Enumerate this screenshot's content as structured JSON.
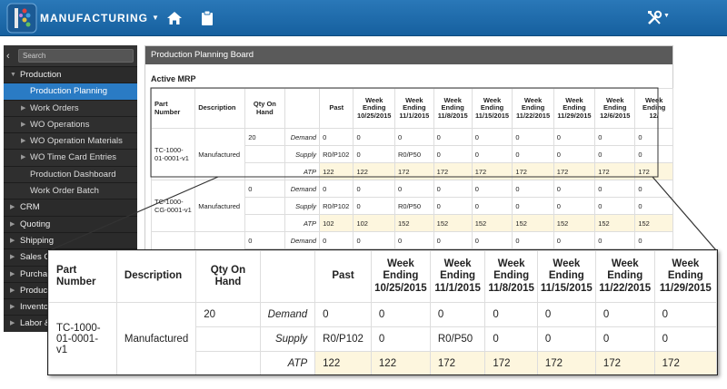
{
  "header": {
    "app_title": "MANUFACTURING"
  },
  "sidebar": {
    "search_placeholder": "Search",
    "items": [
      {
        "label": "Production",
        "kind": "section"
      },
      {
        "label": "Production Planning",
        "kind": "active"
      },
      {
        "label": "Work Orders",
        "kind": "sub"
      },
      {
        "label": "WO Operations",
        "kind": "sub"
      },
      {
        "label": "WO Operation Materials",
        "kind": "sub"
      },
      {
        "label": "WO Time Card Entries",
        "kind": "sub"
      },
      {
        "label": "Production Dashboard",
        "kind": "plain"
      },
      {
        "label": "Work Order Batch",
        "kind": "plain"
      },
      {
        "label": "CRM",
        "kind": "section"
      },
      {
        "label": "Quoting",
        "kind": "section"
      },
      {
        "label": "Shipping",
        "kind": "section"
      },
      {
        "label": "Sales C",
        "kind": "section"
      },
      {
        "label": "Purcha",
        "kind": "section"
      },
      {
        "label": "Produc",
        "kind": "section"
      },
      {
        "label": "Invento",
        "kind": "section"
      },
      {
        "label": "Labor &",
        "kind": "section"
      }
    ]
  },
  "panel": {
    "title": "Production Planning Board",
    "section_title": "Active MRP"
  },
  "table": {
    "headers": {
      "part_number": "Part Number",
      "description": "Description",
      "qty_on_hand": "Qty On Hand",
      "past": "Past",
      "weeks": [
        {
          "line1": "Week",
          "line2": "Ending",
          "line3": "10/25/2015"
        },
        {
          "line1": "Week",
          "line2": "Ending",
          "line3": "11/1/2015"
        },
        {
          "line1": "Week",
          "line2": "Ending",
          "line3": "11/8/2015"
        },
        {
          "line1": "Week",
          "line2": "Ending",
          "line3": "11/15/2015"
        },
        {
          "line1": "Week",
          "line2": "Ending",
          "line3": "11/22/2015"
        },
        {
          "line1": "Week",
          "line2": "Ending",
          "line3": "11/29/2015"
        },
        {
          "line1": "Week",
          "line2": "Ending",
          "line3": "12/6/2015"
        },
        {
          "line1": "Week",
          "line2": "Ending",
          "line3": "12/"
        }
      ]
    },
    "row_labels": {
      "demand": "Demand",
      "supply": "Supply",
      "atp": "ATP"
    },
    "parts": [
      {
        "part_number": "TC-1000-01-0001-v1",
        "description": "Manufactured",
        "qty_on_hand": "20",
        "demand": [
          "0",
          "0",
          "0",
          "0",
          "0",
          "0",
          "0",
          "0",
          "0"
        ],
        "supply": [
          "R0/P102",
          "0",
          "R0/P50",
          "0",
          "0",
          "0",
          "0",
          "0",
          "0"
        ],
        "atp": [
          "122",
          "122",
          "172",
          "172",
          "172",
          "172",
          "172",
          "172",
          "172"
        ]
      },
      {
        "part_number": "TC-1000-CG-0001-v1",
        "description": "Manufactured",
        "qty_on_hand": "0",
        "demand": [
          "0",
          "0",
          "0",
          "0",
          "0",
          "0",
          "0",
          "0",
          "0"
        ],
        "supply": [
          "R0/P102",
          "0",
          "R0/P50",
          "0",
          "0",
          "0",
          "0",
          "0",
          "0"
        ],
        "atp": [
          "102",
          "102",
          "152",
          "152",
          "152",
          "152",
          "152",
          "152",
          "152"
        ]
      },
      {
        "part_number": "TC-1000-",
        "description": "",
        "qty_on_hand": "0",
        "demand": [
          "0",
          "0",
          "0",
          "0",
          "0",
          "0",
          "0",
          "0",
          "0"
        ],
        "supply": [
          "",
          "",
          "",
          "",
          "",
          "",
          "",
          "",
          ""
        ],
        "atp": [
          "",
          "",
          "",
          "",
          "",
          "",
          "",
          "",
          ""
        ]
      }
    ]
  },
  "colors": {
    "topbar": "#1f6fb0",
    "active_nav": "#2a7bc4",
    "atp_highlight": "#fdf6de",
    "link": "#1f5fa8"
  }
}
